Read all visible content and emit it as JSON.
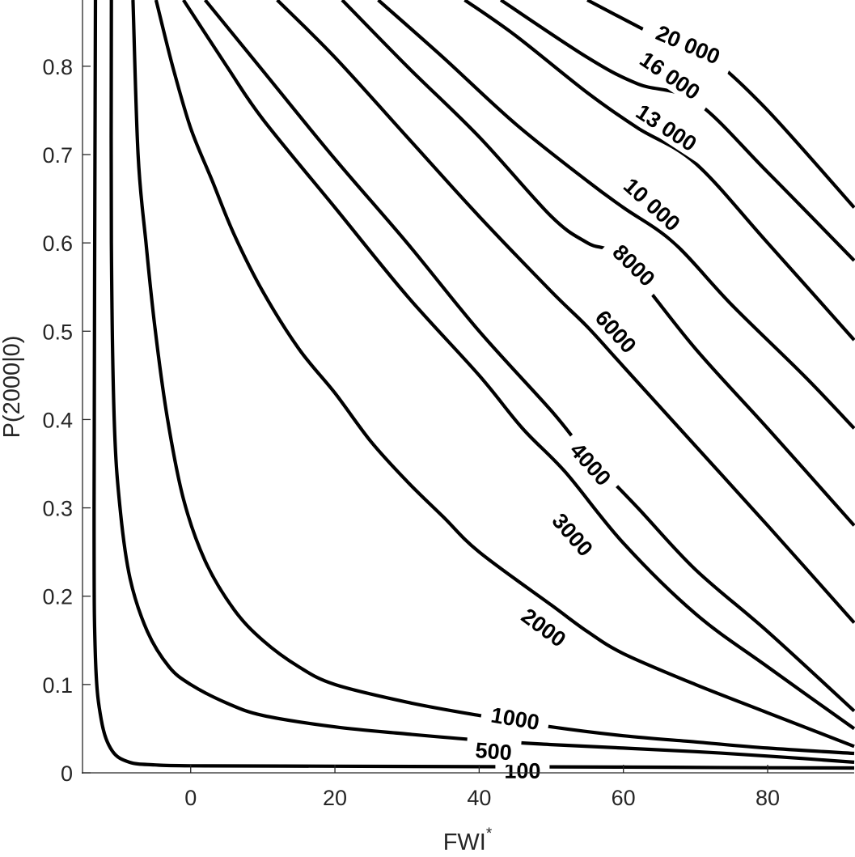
{
  "chart_data": {
    "type": "contour",
    "xlabel": "FWI",
    "xlabel_superscript": "*",
    "ylabel": "P(2000|0)",
    "xlim": [
      -15,
      92
    ],
    "ylim": [
      0,
      0.875
    ],
    "xticks": [
      0,
      20,
      40,
      60,
      80
    ],
    "xtick_labels": [
      "0",
      "20",
      "40",
      "60",
      "80"
    ],
    "yticks": [
      0,
      0.1,
      0.2,
      0.3,
      0.4,
      0.5,
      0.6,
      0.7,
      0.8
    ],
    "ytick_labels": [
      "0",
      "0.1",
      "0.2",
      "0.3",
      "0.4",
      "0.5",
      "0.6",
      "0.7",
      "0.8"
    ],
    "grid": false,
    "line_color": "#000000",
    "contours": [
      {
        "level": 100,
        "label": "100",
        "label_pos": [
          46,
          0.003
        ],
        "points": [
          [
            -13.2,
            0.875
          ],
          [
            -13.4,
            0.3
          ],
          [
            -13.2,
            0.13
          ],
          [
            -12.4,
            0.06
          ],
          [
            -10.9,
            0.025
          ],
          [
            -8.5,
            0.012
          ],
          [
            -5,
            0.009
          ],
          [
            0,
            0.008
          ],
          [
            20,
            0.0075
          ],
          [
            40,
            0.007
          ],
          [
            60,
            0.0065
          ],
          [
            80,
            0.0058
          ],
          [
            92,
            0.0055
          ]
        ]
      },
      {
        "level": 500,
        "label": "500",
        "label_pos": [
          42,
          0.025
        ],
        "points": [
          [
            -11,
            0.875
          ],
          [
            -11,
            0.6
          ],
          [
            -10.6,
            0.4
          ],
          [
            -9.8,
            0.3
          ],
          [
            -8.4,
            0.22
          ],
          [
            -6,
            0.16
          ],
          [
            -3,
            0.12
          ],
          [
            0,
            0.1
          ],
          [
            5,
            0.079
          ],
          [
            10,
            0.065
          ],
          [
            20,
            0.052
          ],
          [
            30,
            0.044
          ],
          [
            40,
            0.037
          ],
          [
            50,
            0.032
          ],
          [
            60,
            0.028
          ],
          [
            70,
            0.024
          ],
          [
            80,
            0.019
          ],
          [
            92,
            0.012
          ]
        ]
      },
      {
        "level": 1000,
        "label": "1000",
        "label_pos": [
          45,
          0.062
        ],
        "points": [
          [
            -8,
            0.875
          ],
          [
            -7.3,
            0.7
          ],
          [
            -6.2,
            0.6
          ],
          [
            -4.9,
            0.5
          ],
          [
            -3.2,
            0.4
          ],
          [
            -1,
            0.31
          ],
          [
            2,
            0.24
          ],
          [
            6,
            0.185
          ],
          [
            10,
            0.15
          ],
          [
            15,
            0.12
          ],
          [
            20,
            0.1
          ],
          [
            30,
            0.08
          ],
          [
            40,
            0.065
          ],
          [
            50,
            0.052
          ],
          [
            60,
            0.042
          ],
          [
            70,
            0.035
          ],
          [
            80,
            0.028
          ],
          [
            92,
            0.022
          ]
        ]
      },
      {
        "level": 2000,
        "label": "2000",
        "label_pos": [
          49,
          0.165
        ],
        "points": [
          [
            -4.8,
            0.875
          ],
          [
            -2.5,
            0.8
          ],
          [
            0,
            0.73
          ],
          [
            3,
            0.67
          ],
          [
            6,
            0.61
          ],
          [
            10,
            0.545
          ],
          [
            15,
            0.48
          ],
          [
            20,
            0.43
          ],
          [
            25,
            0.375
          ],
          [
            30,
            0.33
          ],
          [
            35,
            0.29
          ],
          [
            40,
            0.25
          ],
          [
            50,
            0.19
          ],
          [
            55,
            0.16
          ],
          [
            60,
            0.135
          ],
          [
            70,
            0.1
          ],
          [
            80,
            0.068
          ],
          [
            92,
            0.03
          ]
        ]
      },
      {
        "level": 3000,
        "label": "3000",
        "label_pos": [
          53,
          0.27
        ],
        "points": [
          [
            -1,
            0.875
          ],
          [
            5,
            0.8
          ],
          [
            10,
            0.74
          ],
          [
            20,
            0.64
          ],
          [
            30,
            0.54
          ],
          [
            40,
            0.45
          ],
          [
            46,
            0.39
          ],
          [
            52,
            0.34
          ],
          [
            60,
            0.26
          ],
          [
            70,
            0.18
          ],
          [
            80,
            0.12
          ],
          [
            92,
            0.05
          ]
        ]
      },
      {
        "level": 4000,
        "label": "4000",
        "label_pos": [
          55.5,
          0.35
        ],
        "points": [
          [
            2,
            0.875
          ],
          [
            10,
            0.795
          ],
          [
            20,
            0.695
          ],
          [
            30,
            0.6
          ],
          [
            40,
            0.5
          ],
          [
            50,
            0.41
          ],
          [
            55,
            0.36
          ],
          [
            62,
            0.3
          ],
          [
            70,
            0.23
          ],
          [
            80,
            0.16
          ],
          [
            92,
            0.07
          ]
        ]
      },
      {
        "level": 6000,
        "label": "6000",
        "label_pos": [
          59,
          0.5
        ],
        "points": [
          [
            12,
            0.875
          ],
          [
            20,
            0.81
          ],
          [
            30,
            0.72
          ],
          [
            40,
            0.63
          ],
          [
            50,
            0.545
          ],
          [
            55,
            0.505
          ],
          [
            60,
            0.46
          ],
          [
            70,
            0.37
          ],
          [
            80,
            0.28
          ],
          [
            92,
            0.17
          ]
        ]
      },
      {
        "level": 8000,
        "label": "8000",
        "label_pos": [
          61.5,
          0.575
        ],
        "points": [
          [
            21,
            0.875
          ],
          [
            30,
            0.8
          ],
          [
            40,
            0.72
          ],
          [
            50,
            0.63
          ],
          [
            55,
            0.6
          ],
          [
            60,
            0.58
          ],
          [
            70,
            0.48
          ],
          [
            80,
            0.39
          ],
          [
            92,
            0.28
          ]
        ]
      },
      {
        "level": 10000,
        "label": "10 000",
        "label_pos": [
          64,
          0.644
        ],
        "points": [
          [
            26,
            0.875
          ],
          [
            35,
            0.81
          ],
          [
            45,
            0.735
          ],
          [
            55,
            0.67
          ],
          [
            60,
            0.64
          ],
          [
            67,
            0.6
          ],
          [
            75,
            0.53
          ],
          [
            85,
            0.45
          ],
          [
            92,
            0.39
          ]
        ]
      },
      {
        "level": 13000,
        "label": "13 000",
        "label_pos": [
          66,
          0.731
        ],
        "points": [
          [
            38,
            0.875
          ],
          [
            45,
            0.835
          ],
          [
            55,
            0.77
          ],
          [
            62,
            0.73
          ],
          [
            70,
            0.69
          ],
          [
            80,
            0.6
          ],
          [
            92,
            0.49
          ]
        ]
      },
      {
        "level": 16000,
        "label": "16 000",
        "label_pos": [
          66.5,
          0.79
        ],
        "points": [
          [
            43,
            0.875
          ],
          [
            55,
            0.81
          ],
          [
            62,
            0.78
          ],
          [
            70,
            0.76
          ],
          [
            80,
            0.68
          ],
          [
            92,
            0.58
          ]
        ]
      },
      {
        "level": 20000,
        "label": "20 000",
        "label_pos": [
          69,
          0.825
        ],
        "points": [
          [
            55,
            0.875
          ],
          [
            62,
            0.845
          ],
          [
            67,
            0.825
          ],
          [
            72,
            0.81
          ],
          [
            80,
            0.75
          ],
          [
            92,
            0.64
          ]
        ]
      }
    ]
  }
}
